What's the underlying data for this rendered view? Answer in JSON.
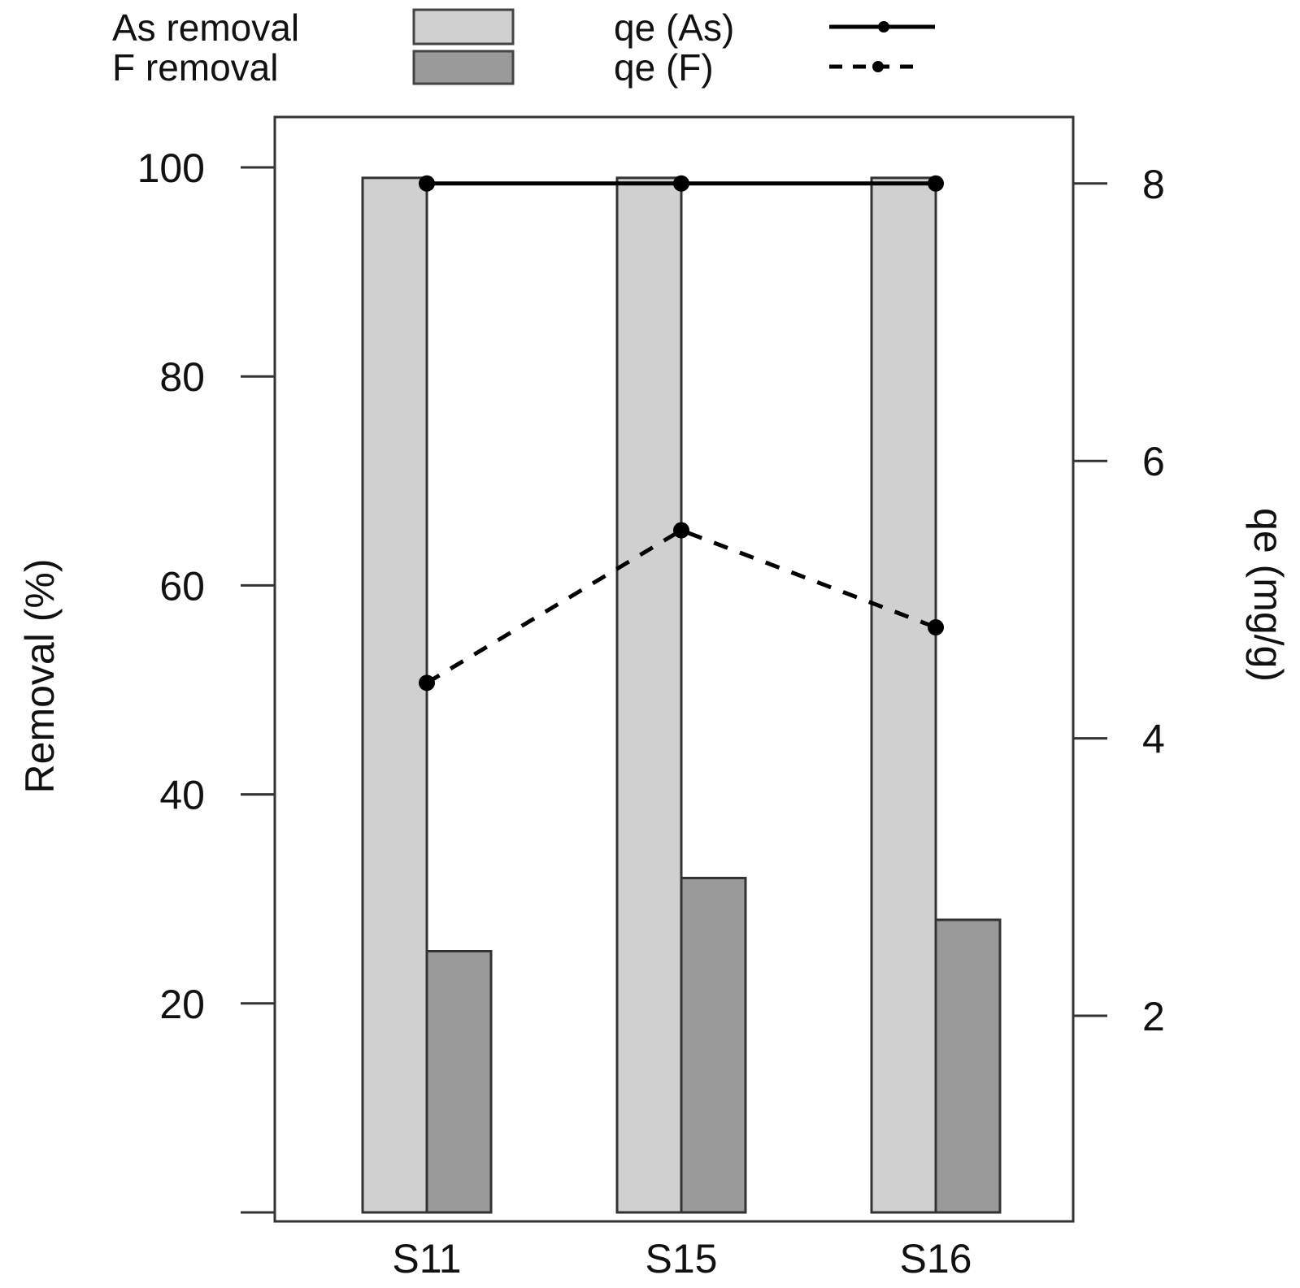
{
  "chart_data": {
    "type": "bar",
    "title": "",
    "categories": [
      "S11",
      "S15",
      "S16"
    ],
    "series": [
      {
        "name": "As removal",
        "kind": "bar",
        "axis": "left",
        "color": "#d0d0d0",
        "values": [
          99.0,
          99.0,
          99.0
        ]
      },
      {
        "name": "F removal",
        "kind": "bar",
        "axis": "left",
        "color": "#9a9a9a",
        "values": [
          25.0,
          32.0,
          28.0
        ]
      },
      {
        "name": "qe (As)",
        "kind": "line",
        "line_style": "solid",
        "axis": "right",
        "color": "#000000",
        "values": [
          8.0,
          8.0,
          8.0
        ]
      },
      {
        "name": "qe (F)",
        "kind": "line",
        "line_style": "dashed",
        "axis": "right",
        "color": "#000000",
        "values": [
          4.4,
          5.5,
          4.8
        ]
      }
    ],
    "y_left": {
      "label": "Removal (%)",
      "ticks": [
        0,
        20,
        40,
        60,
        80,
        100
      ],
      "tick_labels": [
        "",
        "20",
        "40",
        "60",
        "80",
        "100"
      ],
      "range": [
        0,
        105
      ]
    },
    "y_right": {
      "label": "qe (mg/g)",
      "ticks": [
        2,
        4,
        6,
        8
      ],
      "tick_labels": [
        "2",
        "4",
        "6",
        "8"
      ],
      "range": [
        -0.62,
        8.8
      ]
    },
    "grid": false,
    "legend_position": "top"
  }
}
